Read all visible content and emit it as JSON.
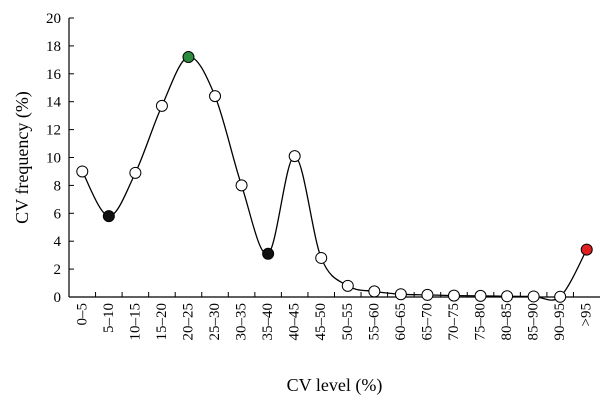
{
  "chart_data": {
    "type": "line",
    "xlabel": "CV level (%)",
    "ylabel": "CV  frequency (%)",
    "ylim": [
      0,
      20
    ],
    "yticks": [
      0,
      2,
      4,
      6,
      8,
      10,
      12,
      14,
      16,
      18,
      20
    ],
    "grid": false,
    "categories": [
      "0–5",
      "5–10",
      "10–15",
      "15–20",
      "20–25",
      "25–30",
      "30–35",
      "35–40",
      "40–45",
      "45–50",
      "50–55",
      "55–60",
      "60–65",
      "65–70",
      "70–75",
      "75–80",
      "80–85",
      "85–90",
      "90–95",
      ">95"
    ],
    "series": [
      {
        "values": [
          9.0,
          5.8,
          8.9,
          13.7,
          17.2,
          14.4,
          8.0,
          3.1,
          10.1,
          2.8,
          0.8,
          0.4,
          0.2,
          0.15,
          0.1,
          0.08,
          0.05,
          0.04,
          0.02,
          3.4
        ],
        "marker_colors": [
          "#ffffff",
          "#111111",
          "#ffffff",
          "#ffffff",
          "#2e8b3e",
          "#ffffff",
          "#ffffff",
          "#111111",
          "#ffffff",
          "#ffffff",
          "#ffffff",
          "#ffffff",
          "#ffffff",
          "#ffffff",
          "#ffffff",
          "#ffffff",
          "#ffffff",
          "#ffffff",
          "#ffffff",
          "#e02020"
        ]
      }
    ]
  }
}
